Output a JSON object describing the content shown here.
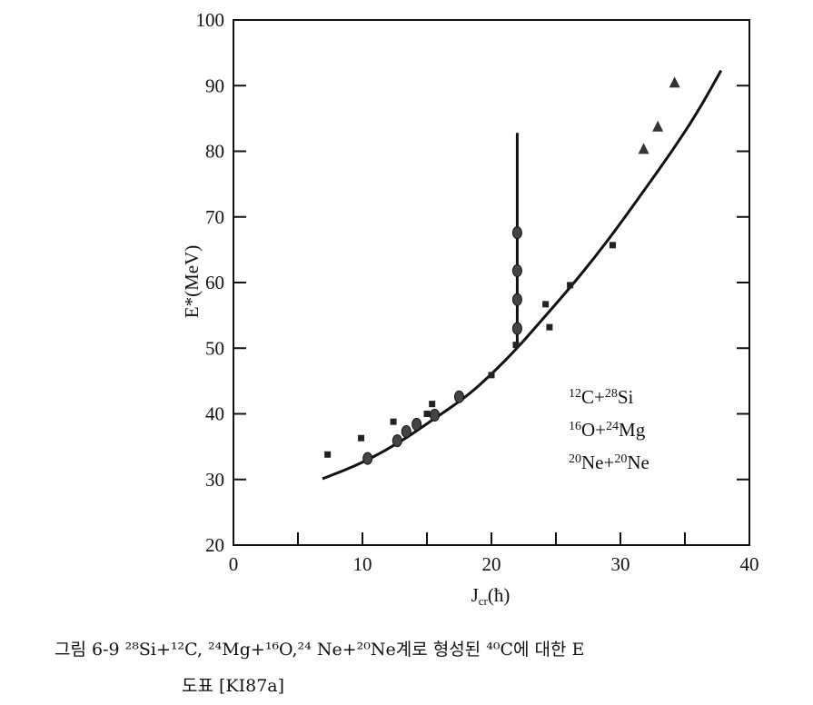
{
  "chart_data": {
    "type": "scatter",
    "xlabel": "Jcr(ħ)",
    "xlabel_main": "J",
    "xlabel_sub": "cr",
    "xlabel_unit": "(ħ)",
    "ylabel": "E*(MeV)",
    "xlim": [
      0,
      40
    ],
    "ylim": [
      20,
      100
    ],
    "xticks": [
      "0",
      "10",
      "20",
      "30",
      "40"
    ],
    "yticks": [
      "20",
      "30",
      "40",
      "50",
      "60",
      "70",
      "80",
      "90",
      "100"
    ],
    "grid": false,
    "legend": [
      "12C+28Si",
      "16O+24Mg",
      "20Ne+20Ne"
    ],
    "legend_parts": [
      {
        "m1": "12",
        "e1": "C",
        "m2": "28",
        "e2": "Si"
      },
      {
        "m1": "16",
        "e1": "O",
        "m2": "24",
        "e2": "Mg"
      },
      {
        "m1": "20",
        "e1": "Ne",
        "m2": "20",
        "e2": "Ne"
      }
    ],
    "legend_placement": "lower-right",
    "series": [
      {
        "marker": "square",
        "points": [
          [
            7.3,
            33.8
          ],
          [
            9.9,
            36.3
          ],
          [
            12.4,
            38.8
          ],
          [
            15.0,
            40.0
          ],
          [
            15.4,
            41.5
          ],
          [
            20.0,
            45.9
          ],
          [
            21.9,
            50.5
          ],
          [
            24.2,
            56.7
          ],
          [
            24.5,
            53.2
          ],
          [
            26.1,
            59.6
          ],
          [
            29.4,
            65.7
          ]
        ]
      },
      {
        "marker": "circle",
        "points": [
          [
            10.4,
            33.2
          ],
          [
            12.7,
            35.9
          ],
          [
            13.4,
            37.3
          ],
          [
            14.2,
            38.4
          ],
          [
            15.6,
            39.8
          ],
          [
            17.5,
            42.6
          ],
          [
            22.0,
            53.0
          ],
          [
            22.0,
            57.4
          ],
          [
            22.0,
            61.8
          ],
          [
            22.0,
            67.6
          ]
        ]
      },
      {
        "marker": "triangle",
        "points": [
          [
            31.8,
            80.3
          ],
          [
            32.9,
            83.7
          ],
          [
            34.2,
            90.4
          ]
        ]
      }
    ],
    "fit_curve": [
      [
        6.9,
        30.1
      ],
      [
        10,
        32.5
      ],
      [
        13,
        35.8
      ],
      [
        15,
        38.5
      ],
      [
        18,
        42.5
      ],
      [
        20,
        46
      ],
      [
        22,
        50
      ],
      [
        24,
        54.5
      ],
      [
        26,
        59
      ],
      [
        28,
        63.8
      ],
      [
        30,
        69
      ],
      [
        32,
        74.5
      ],
      [
        34,
        80
      ],
      [
        36,
        86
      ],
      [
        37.8,
        92.3
      ]
    ],
    "vertical_line": {
      "x": 22.0,
      "y_from": 50.5,
      "y_to": 82.8
    }
  },
  "caption": {
    "line1": "그림 6-9   ²⁸Si+¹²C, ²⁴Mg+¹⁶O,²⁴ Ne+²⁰Ne계로 형성된 ⁴⁰C에 대한 E",
    "line2": "도표 [KI87a]"
  }
}
